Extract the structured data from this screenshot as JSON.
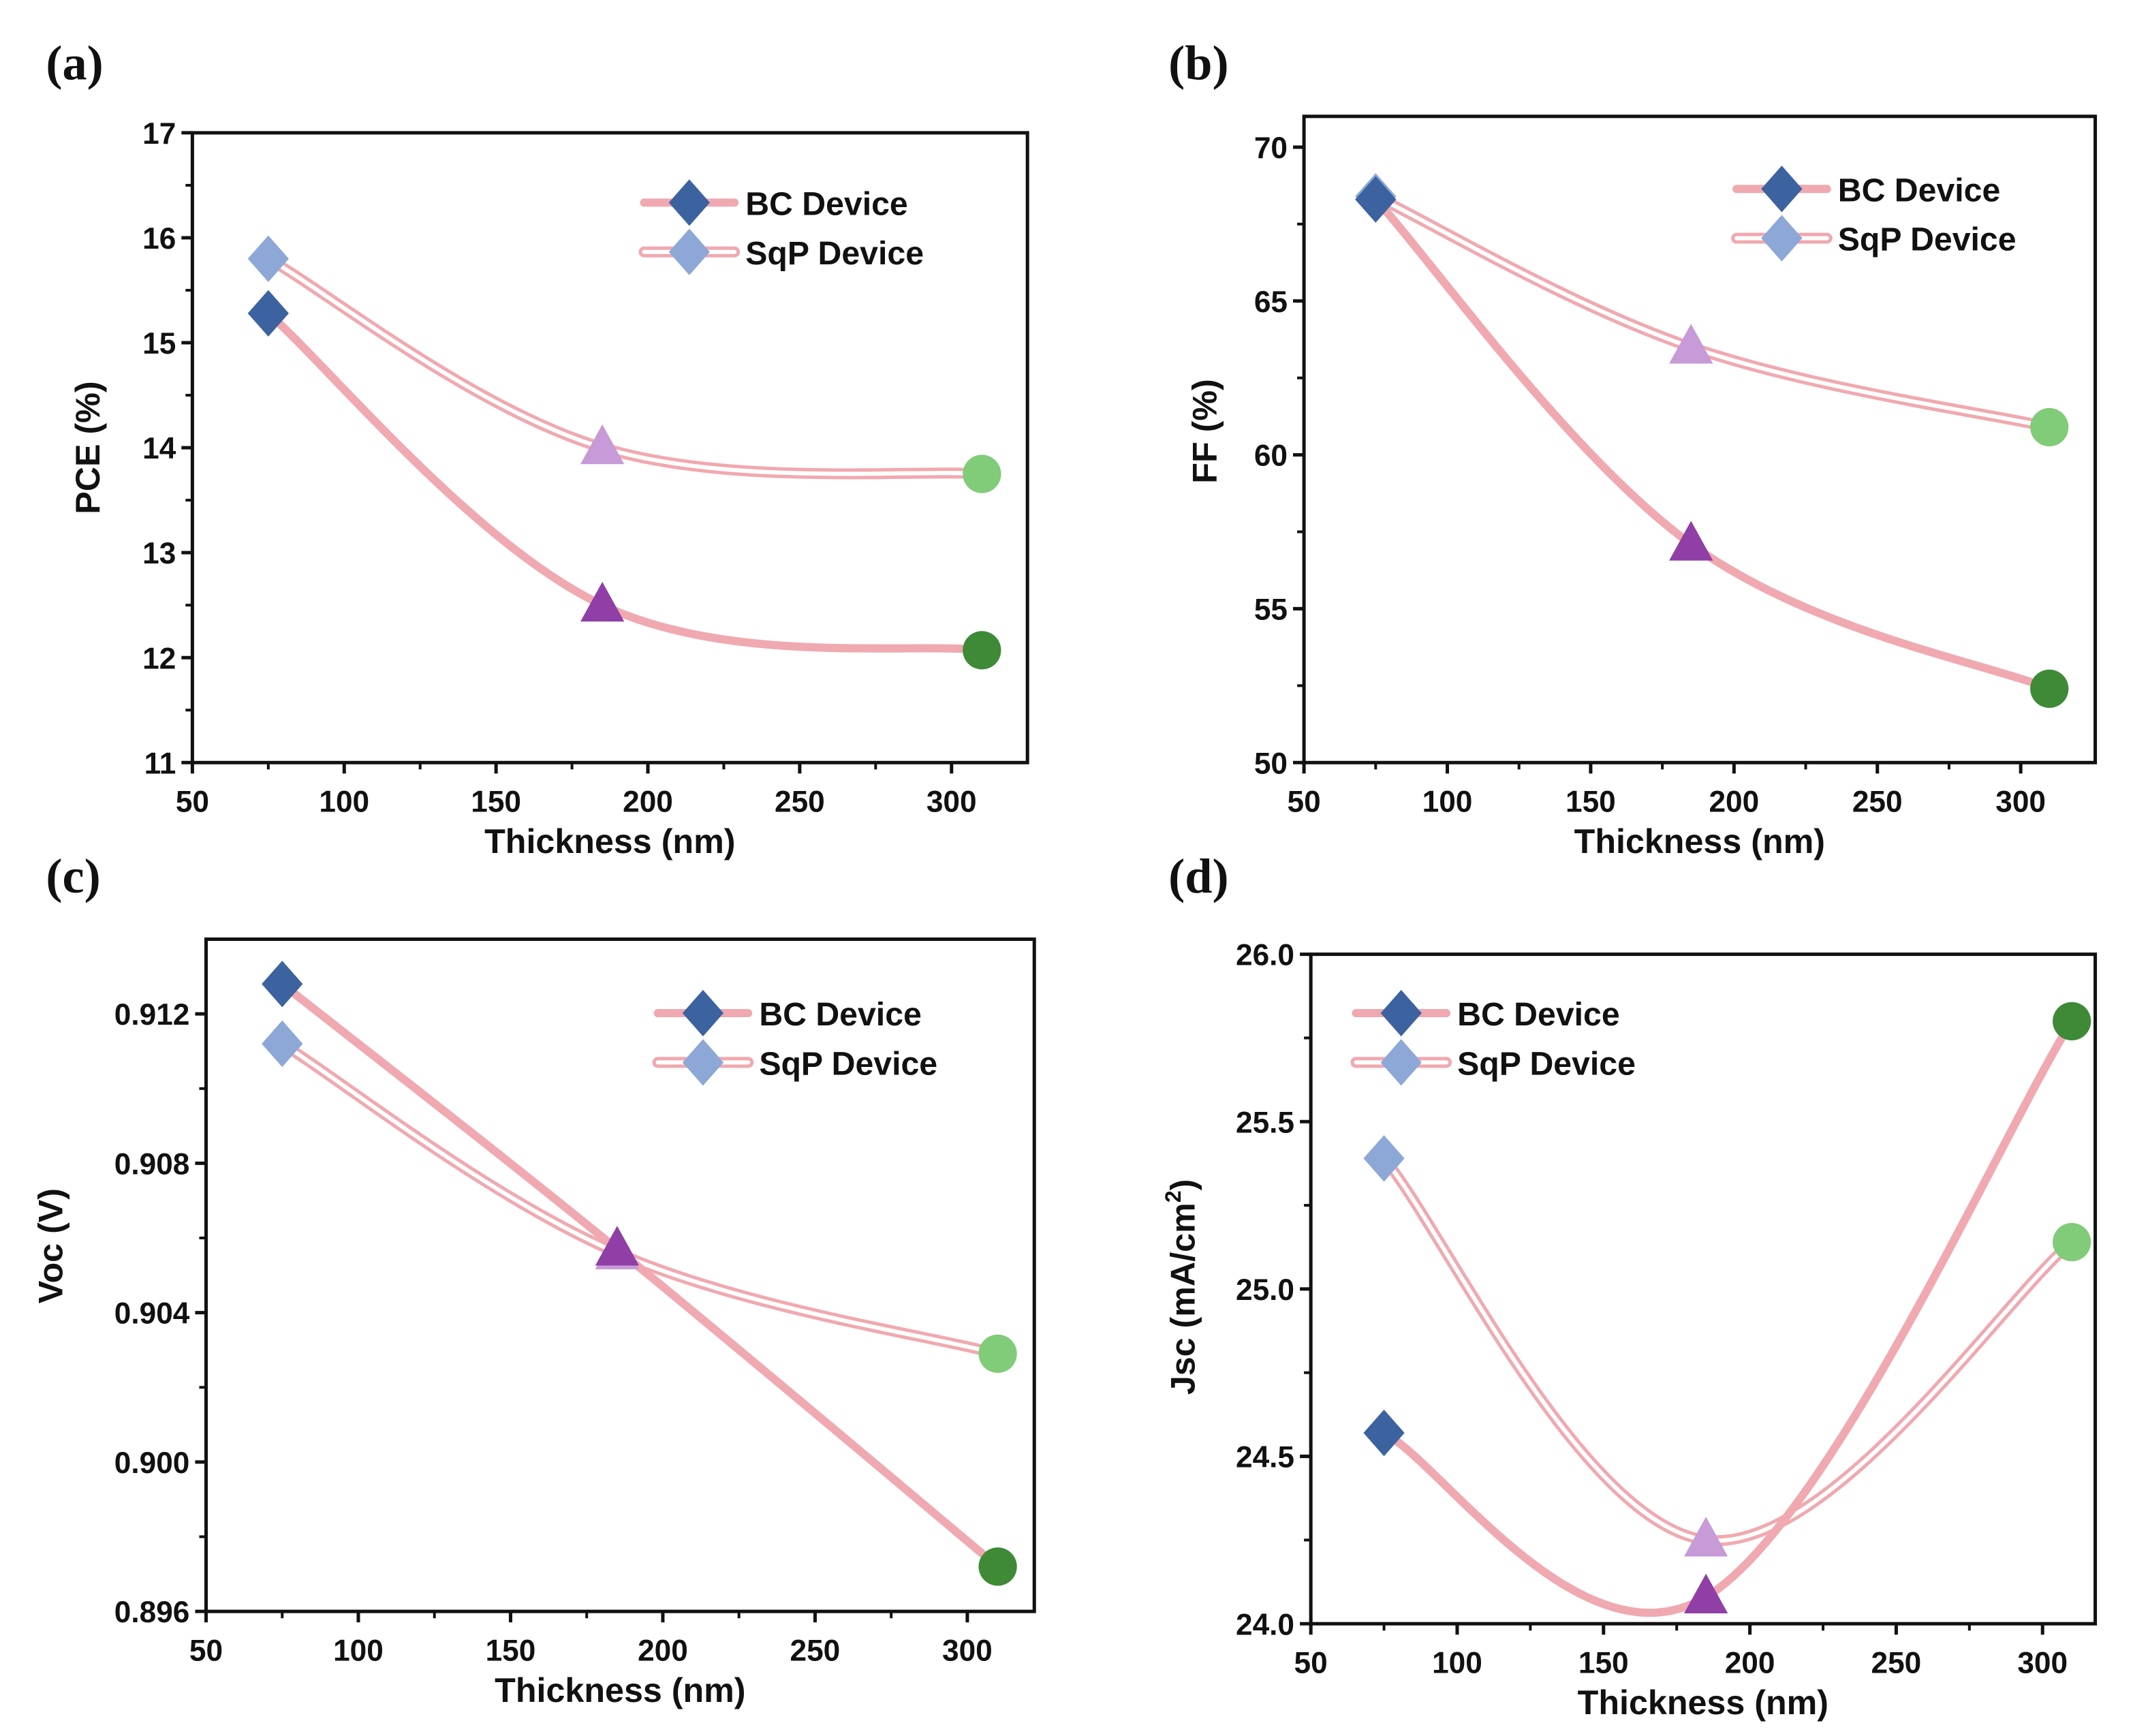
{
  "chart_data": [
    {
      "type": "line",
      "panel_label": "(a)",
      "xlabel": "Thickness (nm)",
      "ylabel": "PCE (%)",
      "xlim": [
        50,
        325
      ],
      "ylim": [
        11,
        17
      ],
      "xticks": [
        50,
        100,
        150,
        200,
        250,
        300
      ],
      "yticks": [
        11,
        12,
        13,
        14,
        15,
        16,
        17
      ],
      "ytick_labels": [
        "11",
        "12",
        "13",
        "14",
        "15",
        "16",
        "17"
      ],
      "x": [
        75,
        185,
        310
      ],
      "series": [
        {
          "name": "BC Device",
          "values": [
            15.28,
            12.5,
            12.07
          ]
        },
        {
          "name": "SqP Device",
          "values": [
            15.8,
            14.0,
            13.75
          ]
        }
      ],
      "legend": "top-right"
    },
    {
      "type": "line",
      "panel_label": "(b)",
      "xlabel": "Thickness (nm)",
      "ylabel": "FF (%)",
      "xlim": [
        50,
        326
      ],
      "ylim": [
        50,
        71
      ],
      "xticks": [
        50,
        100,
        150,
        200,
        250,
        300
      ],
      "yticks": [
        50,
        55,
        60,
        65,
        70
      ],
      "ytick_labels": [
        "50",
        "55",
        "60",
        "65",
        "70"
      ],
      "x": [
        75,
        185,
        310
      ],
      "series": [
        {
          "name": "BC Device",
          "values": [
            68.3,
            57.1,
            52.4
          ]
        },
        {
          "name": "SqP Device",
          "values": [
            68.4,
            63.5,
            60.9
          ]
        }
      ],
      "legend": "top-right"
    },
    {
      "type": "line",
      "panel_label": "(c)",
      "xlabel": "Thickness (nm)",
      "ylabel": "Voc (V)",
      "xlim": [
        50,
        322
      ],
      "ylim": [
        0.896,
        0.914
      ],
      "xticks": [
        50,
        100,
        150,
        200,
        250,
        300
      ],
      "yticks": [
        0.896,
        0.9,
        0.904,
        0.908,
        0.912
      ],
      "ytick_labels": [
        "0.896",
        "0.900",
        "0.904",
        "0.908",
        "0.912"
      ],
      "x": [
        75,
        185,
        310
      ],
      "series": [
        {
          "name": "BC Device",
          "values": [
            0.9128,
            0.9057,
            0.8972
          ]
        },
        {
          "name": "SqP Device",
          "values": [
            0.9112,
            0.9056,
            0.9029
          ]
        }
      ],
      "legend": "top-right"
    },
    {
      "type": "line",
      "panel_label": "(d)",
      "xlabel": "Thickness (nm)",
      "ylabel": "Jsc (mA/cm2)",
      "ylabel_main": "Jsc (mA/cm",
      "ylabel_sup": "2",
      "ylabel_end": ")",
      "xlim": [
        50,
        318
      ],
      "ylim": [
        24,
        26
      ],
      "xticks": [
        50,
        100,
        150,
        200,
        250,
        300
      ],
      "yticks": [
        24,
        24.5,
        25,
        25.5,
        26
      ],
      "ytick_labels": [
        "24.0",
        "24.5",
        "25.0",
        "25.5",
        "26.0"
      ],
      "x": [
        75,
        185,
        310
      ],
      "series": [
        {
          "name": "BC Device",
          "values": [
            24.57,
            24.08,
            25.8
          ]
        },
        {
          "name": "SqP Device",
          "values": [
            25.39,
            24.25,
            25.14
          ]
        }
      ],
      "legend": "top-left"
    }
  ],
  "colors": {
    "line": "#f0a9b0",
    "bc_diamond": "#3d62a0",
    "sqp_diamond": "#8da8d6",
    "bc_triangle": "#8f3fa6",
    "sqp_triangle": "#c79ad8",
    "bc_circle": "#3e8a37",
    "sqp_circle": "#80cc78"
  }
}
